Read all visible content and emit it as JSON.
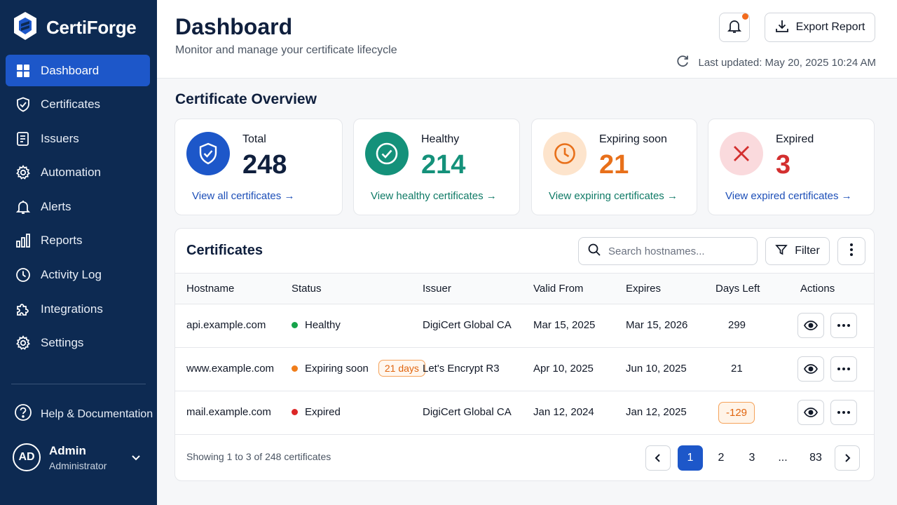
{
  "brand": {
    "name": "CertiForge"
  },
  "sidebar": {
    "items": [
      {
        "label": "Dashboard",
        "icon": "grid-icon",
        "active": true
      },
      {
        "label": "Certificates",
        "icon": "shield-check-icon"
      },
      {
        "label": "Issuers",
        "icon": "document-list-icon"
      },
      {
        "label": "Automation",
        "icon": "gear-icon"
      },
      {
        "label": "Alerts",
        "icon": "bell-icon"
      },
      {
        "label": "Reports",
        "icon": "bar-chart-icon"
      },
      {
        "label": "Activity Log",
        "icon": "clock-icon"
      },
      {
        "label": "Integrations",
        "icon": "puzzle-icon"
      },
      {
        "label": "Settings",
        "icon": "gear-icon"
      }
    ],
    "help_label": "Help & Documentation",
    "user": {
      "initials": "AD",
      "name": "Admin",
      "role": "Administrator"
    }
  },
  "header": {
    "title": "Dashboard",
    "subtitle": "Monitor and manage your certificate lifecycle",
    "export_label": "Export Report",
    "last_updated": "Last updated: May 20, 2025 10:24 AM"
  },
  "overview": {
    "title": "Certificate Overview",
    "cards": [
      {
        "label": "Total",
        "value": "248",
        "link": "View all certificates →",
        "color": "#1d57c9"
      },
      {
        "label": "Healthy",
        "value": "214",
        "link": "View healthy certificates →",
        "color": "#14917a"
      },
      {
        "label": "Expiring soon",
        "value": "21",
        "link": "View expiring certificates →",
        "color": "#e8701a"
      },
      {
        "label": "Expired",
        "value": "3",
        "link": "View expired certificates →",
        "color": "#d32f2f"
      }
    ]
  },
  "table": {
    "title": "Certificates",
    "search_placeholder": "Search hostnames...",
    "filter_label": "Filter",
    "columns": [
      "Hostname",
      "Status",
      "Issuer",
      "Valid From",
      "Expires",
      "Days Left",
      "Actions"
    ],
    "rows": [
      {
        "hostname": "api.example.com",
        "status": "Healthy",
        "status_color": "#16a34a",
        "badge": "",
        "issuer": "DigiCert Global CA",
        "valid_from": "Mar 15, 2025",
        "expires": "Mar 15, 2026",
        "days_left": "299"
      },
      {
        "hostname": "www.example.com",
        "status": "Expiring soon",
        "status_color": "#f07d1a",
        "badge": "21 days",
        "issuer": "Let's Encrypt R3",
        "valid_from": "Apr 10, 2025",
        "expires": "Jun 10, 2025",
        "days_left": "21"
      },
      {
        "hostname": "mail.example.com",
        "status": "Expired",
        "status_color": "#dc2626",
        "badge": "",
        "issuer": "DigiCert Global CA",
        "valid_from": "Jan 12, 2024",
        "expires": "Jan 12, 2025",
        "days_left": "-129"
      }
    ],
    "footer": "Showing 1 to 3 of 248 certificates",
    "pagination": [
      "1",
      "2",
      "3",
      "...",
      "83"
    ]
  }
}
